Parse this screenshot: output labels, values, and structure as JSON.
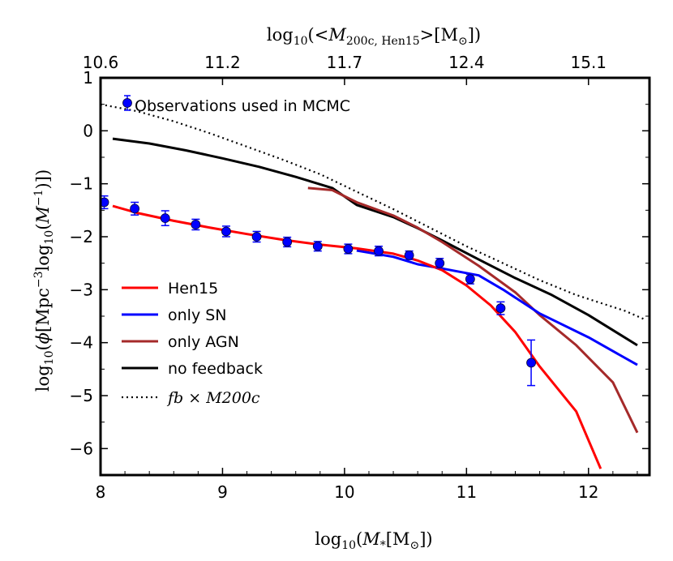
{
  "chart_data": {
    "type": "line",
    "title": "",
    "xlabel": "log10(M*[M⊙])",
    "ylabel": "log10(ϕ[Mpc^-3 log10(M^-1)])",
    "top_xlabel": "log10(<M200c,Hen15>[M⊙])",
    "xlim": [
      8,
      12.5
    ],
    "ylim": [
      -6.5,
      1
    ],
    "grid": false,
    "legend_position": "lower-left",
    "x_ticks": [
      "8",
      "9",
      "10",
      "11",
      "12"
    ],
    "x_tick_values": [
      8,
      9,
      10,
      11,
      12
    ],
    "y_ticks": [
      "1",
      "0",
      "−1",
      "−2",
      "−3",
      "−4",
      "−5",
      "−6"
    ],
    "y_tick_values": [
      1,
      0,
      -1,
      -2,
      -3,
      -4,
      -5,
      -6
    ],
    "top_ticks": [
      "10.6",
      "11.2",
      "11.7",
      "12.4",
      "15.1"
    ],
    "top_tick_values": [
      8,
      9,
      10,
      11,
      12
    ],
    "series": [
      {
        "name": "Hen15",
        "color": "#ff0000",
        "style": "solid",
        "x": [
          8.1,
          8.3,
          8.6,
          8.9,
          9.2,
          9.5,
          9.8,
          10.1,
          10.4,
          10.6,
          10.8,
          11.0,
          11.2,
          11.4,
          11.6,
          11.9,
          12.1
        ],
        "y": [
          -1.42,
          -1.55,
          -1.7,
          -1.83,
          -1.95,
          -2.06,
          -2.15,
          -2.22,
          -2.32,
          -2.45,
          -2.63,
          -2.92,
          -3.3,
          -3.8,
          -4.45,
          -5.3,
          -6.38
        ]
      },
      {
        "name": "only SN",
        "color": "#0000ff",
        "style": "solid",
        "x": [
          10.1,
          10.4,
          10.6,
          10.8,
          11.1,
          11.3,
          11.6,
          12.0,
          12.4
        ],
        "y": [
          -2.26,
          -2.38,
          -2.52,
          -2.6,
          -2.73,
          -3.0,
          -3.45,
          -3.9,
          -4.42
        ]
      },
      {
        "name": "only AGN",
        "color": "#a52a2a",
        "style": "solid",
        "x": [
          9.7,
          9.9,
          10.1,
          10.4,
          10.6,
          10.8,
          11.1,
          11.4,
          11.6,
          11.9,
          12.2,
          12.4
        ],
        "y": [
          -1.08,
          -1.12,
          -1.35,
          -1.6,
          -1.83,
          -2.1,
          -2.55,
          -3.05,
          -3.48,
          -4.05,
          -4.75,
          -5.7
        ]
      },
      {
        "name": "no feedback",
        "color": "#000000",
        "style": "solid",
        "x": [
          8.1,
          8.4,
          8.7,
          9.0,
          9.3,
          9.6,
          9.9,
          10.1,
          10.4,
          10.6,
          10.8,
          11.1,
          11.4,
          11.7,
          12.0,
          12.4
        ],
        "y": [
          -0.15,
          -0.24,
          -0.37,
          -0.52,
          -0.68,
          -0.87,
          -1.08,
          -1.4,
          -1.63,
          -1.84,
          -2.07,
          -2.43,
          -2.78,
          -3.1,
          -3.48,
          -4.05
        ]
      },
      {
        "name": "fb × M200c",
        "color": "#000000",
        "style": "dotted",
        "x": [
          8.0,
          8.3,
          8.6,
          8.9,
          9.2,
          9.5,
          9.8,
          10.1,
          10.4,
          10.7,
          11.0,
          11.3,
          11.6,
          11.9,
          12.1,
          12.3,
          12.45
        ],
        "y": [
          0.5,
          0.37,
          0.18,
          -0.05,
          -0.3,
          -0.55,
          -0.82,
          -1.15,
          -1.48,
          -1.83,
          -2.18,
          -2.5,
          -2.82,
          -3.1,
          -3.25,
          -3.4,
          -3.55
        ]
      }
    ],
    "observations": {
      "name": "Observations used in MCMC",
      "color": "#0000ff",
      "x": [
        8.03,
        8.28,
        8.53,
        8.78,
        9.03,
        9.28,
        9.53,
        9.78,
        10.03,
        10.28,
        10.53,
        10.78,
        11.03,
        11.28,
        11.53
      ],
      "y": [
        -1.35,
        -1.47,
        -1.65,
        -1.77,
        -1.9,
        -2.0,
        -2.1,
        -2.18,
        -2.23,
        -2.27,
        -2.35,
        -2.5,
        -2.8,
        -3.35,
        -4.38
      ],
      "err": [
        0.12,
        0.12,
        0.14,
        0.1,
        0.1,
        0.1,
        0.09,
        0.09,
        0.09,
        0.09,
        0.08,
        0.09,
        0.09,
        0.12,
        0.43
      ]
    },
    "legend": {
      "observations_label": "Observations used in MCMC",
      "entries": [
        {
          "label": "Hen15",
          "color": "#ff0000",
          "style": "solid"
        },
        {
          "label": "only SN",
          "color": "#0000ff",
          "style": "solid"
        },
        {
          "label": "only AGN",
          "color": "#a52a2a",
          "style": "solid"
        },
        {
          "label": "no feedback",
          "color": "#000000",
          "style": "solid"
        },
        {
          "label": "fb × M200c",
          "color": "#000000",
          "style": "dotted"
        }
      ]
    }
  }
}
